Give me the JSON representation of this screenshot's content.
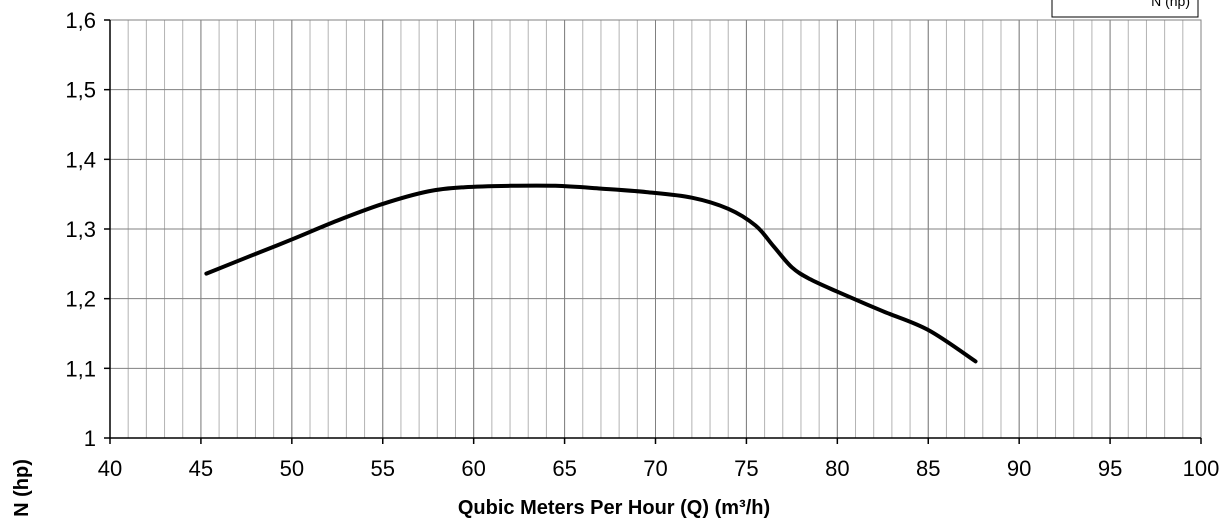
{
  "chart_data": {
    "type": "line",
    "xlabel": "Qubic Meters Per Hour (Q) (m³/h)",
    "ylabel": "N (hp)",
    "xlim": [
      40,
      100
    ],
    "ylim": [
      1,
      1.6
    ],
    "x_major_ticks": [
      40,
      45,
      50,
      55,
      60,
      65,
      70,
      75,
      80,
      85,
      90,
      95,
      100
    ],
    "x_tick_labels": [
      "40",
      "45",
      "50",
      "55",
      "60",
      "65",
      "70",
      "75",
      "80",
      "85",
      "90",
      "95",
      "100"
    ],
    "y_major_ticks": [
      1,
      1.1,
      1.2,
      1.3,
      1.4,
      1.5,
      1.6
    ],
    "y_tick_labels": [
      "1",
      "1,1",
      "1,2",
      "1,3",
      "1,4",
      "1,5",
      "1,6"
    ],
    "x_minor_step": 1,
    "grid": true,
    "legend_position": "top-right",
    "series": [
      {
        "name": "N (hp)",
        "color": "#000000",
        "x": [
          45.3,
          47.5,
          50,
          52.5,
          55,
          57.5,
          59.5,
          62,
          64.5,
          67,
          69.5,
          72,
          74,
          75.5,
          76.5,
          77.5,
          78.5,
          80,
          82.5,
          85,
          87.6
        ],
        "y": [
          1.236,
          1.259,
          1.285,
          1.312,
          1.336,
          1.354,
          1.36,
          1.362,
          1.362,
          1.358,
          1.353,
          1.345,
          1.329,
          1.305,
          1.275,
          1.245,
          1.228,
          1.21,
          1.182,
          1.155,
          1.11
        ]
      }
    ]
  }
}
